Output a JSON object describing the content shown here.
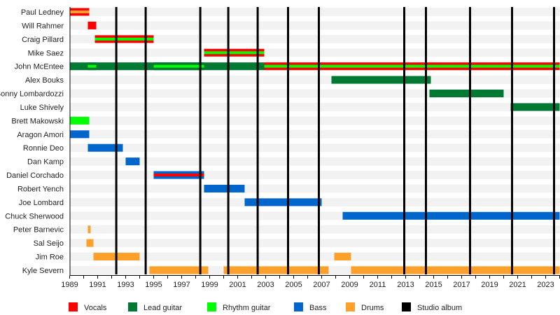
{
  "chart_data": {
    "type": "timeline",
    "xlim": [
      1989,
      2024
    ],
    "x_ticks": [
      1989,
      1991,
      1993,
      1995,
      1997,
      1999,
      2001,
      2003,
      2005,
      2007,
      2009,
      2011,
      2013,
      2015,
      2017,
      2019,
      2021,
      2023
    ],
    "roles": [
      {
        "key": "vocals",
        "label": "Vocals",
        "color": "#ff0000"
      },
      {
        "key": "lead",
        "label": "Lead guitar",
        "color": "#007a33"
      },
      {
        "key": "rhythm",
        "label": "Rhythm guitar",
        "color": "#00ff00"
      },
      {
        "key": "bass",
        "label": "Bass",
        "color": "#0066cc"
      },
      {
        "key": "drums",
        "label": "Drums",
        "color": "#ffa02a"
      },
      {
        "key": "album",
        "label": "Studio album",
        "color": "#000000"
      }
    ],
    "albums": [
      1992.33,
      1994.43,
      1998.33,
      2000.33,
      2002.43,
      2004.6,
      2006.8,
      2012.9,
      2014.45,
      2017.6,
      2020.6,
      2023.6
    ],
    "members": [
      {
        "name": "Paul Ledney",
        "periods": [
          {
            "start": 1989.0,
            "end": 1990.4,
            "main": "vocals",
            "stripe": "drums"
          }
        ]
      },
      {
        "name": "Will Rahmer",
        "periods": [
          {
            "start": 1990.3,
            "end": 1990.9,
            "main": "vocals"
          }
        ]
      },
      {
        "name": "Craig Pillard",
        "periods": [
          {
            "start": 1990.8,
            "end": 1995.0,
            "main": "vocals",
            "stripe": "rhythm"
          }
        ]
      },
      {
        "name": "Mike Saez",
        "periods": [
          {
            "start": 1998.6,
            "end": 2002.9,
            "main": "vocals",
            "stripe": "rhythm"
          }
        ]
      },
      {
        "name": "John McEntee",
        "periods": [
          {
            "start": 1989.0,
            "end": 2002.9,
            "main": "lead"
          },
          {
            "start": 1990.3,
            "end": 1990.9,
            "main": "lead",
            "stripe": "rhythm"
          },
          {
            "start": 1995.0,
            "end": 1998.6,
            "main": "lead",
            "stripe": "rhythm"
          },
          {
            "start": 2002.9,
            "end": 2024.0,
            "main": "vocals",
            "stripe": "rhythm"
          }
        ]
      },
      {
        "name": "Alex Bouks",
        "periods": [
          {
            "start": 2007.7,
            "end": 2014.8,
            "main": "lead"
          }
        ]
      },
      {
        "name": "Sonny Lombardozzi",
        "periods": [
          {
            "start": 2014.7,
            "end": 2020.0,
            "main": "lead"
          }
        ]
      },
      {
        "name": "Luke Shively",
        "periods": [
          {
            "start": 2020.5,
            "end": 2024.0,
            "main": "lead"
          }
        ]
      },
      {
        "name": "Brett Makowski",
        "periods": [
          {
            "start": 1989.0,
            "end": 1990.4,
            "main": "rhythm"
          }
        ]
      },
      {
        "name": "Aragon Amori",
        "periods": [
          {
            "start": 1989.0,
            "end": 1990.4,
            "main": "bass"
          }
        ]
      },
      {
        "name": "Ronnie Deo",
        "periods": [
          {
            "start": 1990.3,
            "end": 1992.8,
            "main": "bass"
          }
        ]
      },
      {
        "name": "Dan Kamp",
        "periods": [
          {
            "start": 1993.0,
            "end": 1994.0,
            "main": "bass"
          }
        ]
      },
      {
        "name": "Daniel Corchado",
        "periods": [
          {
            "start": 1995.0,
            "end": 1998.6,
            "main": "bass",
            "stripe": "vocals"
          }
        ]
      },
      {
        "name": "Robert Yench",
        "periods": [
          {
            "start": 1998.6,
            "end": 2001.5,
            "main": "bass"
          }
        ]
      },
      {
        "name": "Joe Lombard",
        "periods": [
          {
            "start": 2001.5,
            "end": 2007.0,
            "main": "bass"
          }
        ]
      },
      {
        "name": "Chuck Sherwood",
        "periods": [
          {
            "start": 2008.5,
            "end": 2024.0,
            "main": "bass"
          }
        ]
      },
      {
        "name": "Peter Barnevic",
        "periods": [
          {
            "start": 1990.3,
            "end": 1990.5,
            "main": "drums"
          }
        ]
      },
      {
        "name": "Sal Seijo",
        "periods": [
          {
            "start": 1990.2,
            "end": 1990.7,
            "main": "drums"
          }
        ]
      },
      {
        "name": "Jim Roe",
        "periods": [
          {
            "start": 1990.7,
            "end": 1994.0,
            "main": "drums"
          },
          {
            "start": 2007.9,
            "end": 2009.1,
            "main": "drums"
          }
        ]
      },
      {
        "name": "Kyle Severn",
        "periods": [
          {
            "start": 1994.7,
            "end": 1998.9,
            "main": "drums"
          },
          {
            "start": 2000.0,
            "end": 2007.5,
            "main": "drums"
          },
          {
            "start": 2009.1,
            "end": 2024.0,
            "main": "drums"
          }
        ]
      }
    ]
  }
}
